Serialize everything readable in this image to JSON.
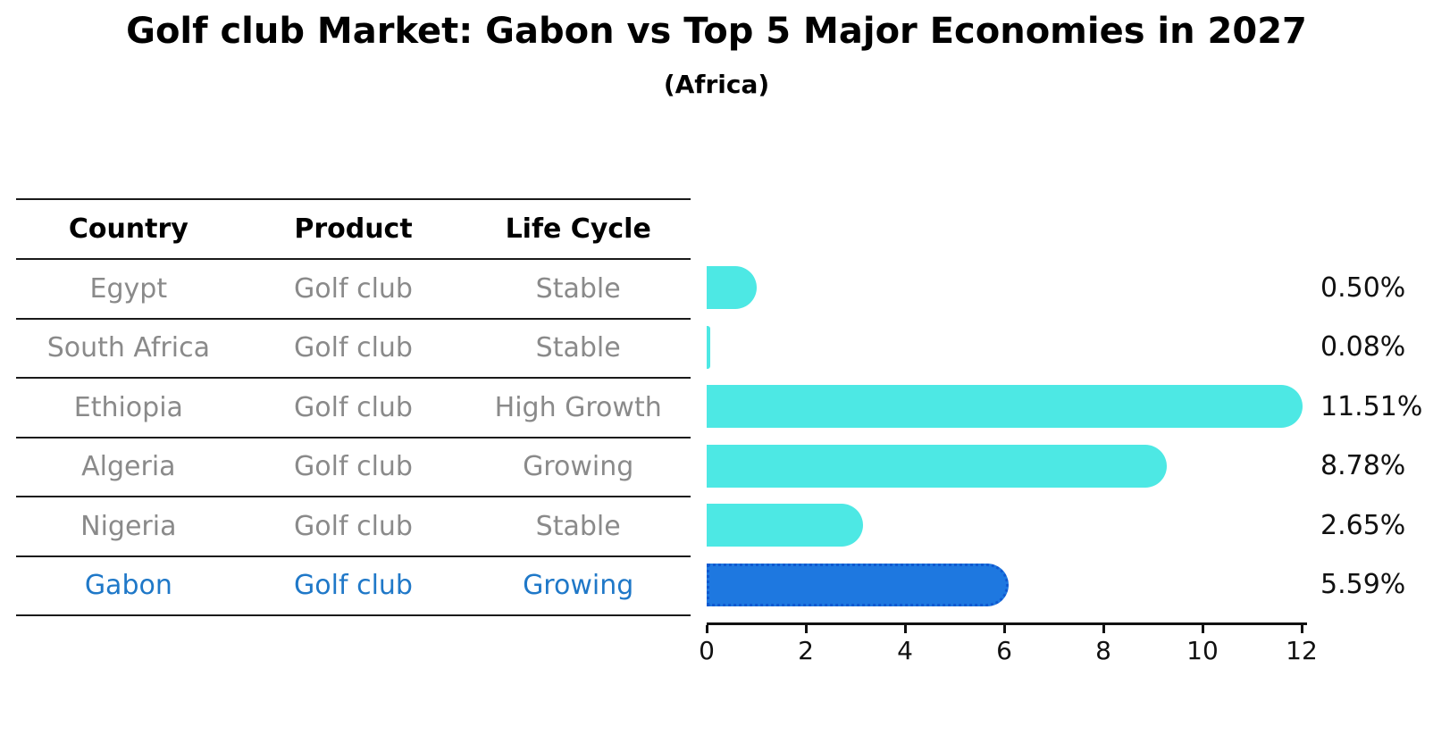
{
  "title": "Golf club Market: Gabon vs Top 5 Major Economies in 2027",
  "subtitle": "(Africa)",
  "table": {
    "headers": [
      "Country",
      "Product",
      "Life Cycle"
    ],
    "rows": [
      {
        "country": "Egypt",
        "product": "Golf club",
        "life_cycle": "Stable",
        "highlight": false
      },
      {
        "country": "South Africa",
        "product": "Golf club",
        "life_cycle": "Stable",
        "highlight": false
      },
      {
        "country": "Ethiopia",
        "product": "Golf club",
        "life_cycle": "High Growth",
        "highlight": false
      },
      {
        "country": "Algeria",
        "product": "Golf club",
        "life_cycle": "Growing",
        "highlight": false
      },
      {
        "country": "Nigeria",
        "product": "Golf club",
        "life_cycle": "Stable",
        "highlight": true
      }
    ],
    "highlight_row": {
      "country": "Gabon",
      "product": "Golf club",
      "life_cycle": "Growing"
    }
  },
  "chart_data": {
    "type": "bar",
    "orientation": "horizontal",
    "title": "Golf club Market: Gabon vs Top 5 Major Economies in 2027",
    "subtitle": "(Africa)",
    "categories": [
      "Egypt",
      "South Africa",
      "Ethiopia",
      "Algeria",
      "Nigeria",
      "Gabon"
    ],
    "values": [
      0.5,
      0.08,
      11.51,
      8.78,
      2.65,
      5.59
    ],
    "value_labels": [
      "0.50%",
      "0.08%",
      "11.51%",
      "8.78%",
      "2.65%",
      "5.59%"
    ],
    "xlabel": "",
    "ylabel": "",
    "xlim": [
      0,
      12
    ],
    "x_ticks": [
      0,
      2,
      4,
      6,
      8,
      10,
      12
    ],
    "grid": false,
    "legend": false,
    "highlight_index": 5
  },
  "colors": {
    "bar_default": "#4de8e4",
    "bar_highlight": "#1e78e0",
    "bar_highlight_border": "#1059d0",
    "highlight_text": "#1f78c8",
    "table_text": "#8a8a8a",
    "header_text": "#000000",
    "axis_text": "#111111"
  }
}
